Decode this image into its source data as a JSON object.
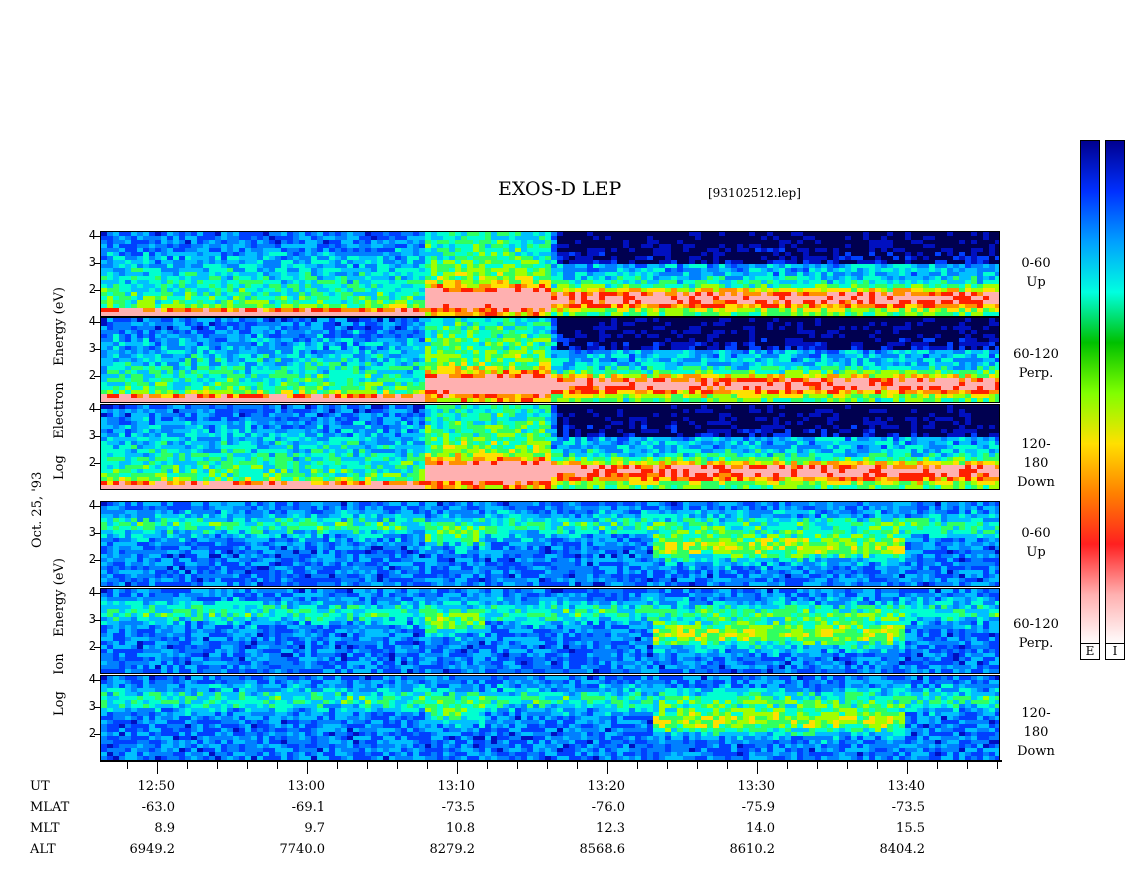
{
  "header": {
    "title": "EXOS-D LEP",
    "file": "[93102512.lep]"
  },
  "left_labels": {
    "electron": [
      "Log",
      "Electron",
      "Energy",
      "(eV)"
    ],
    "date": "Oct. 25, '93",
    "ion": [
      "Log",
      "Ion",
      "Energy",
      "(eV)"
    ]
  },
  "pitch_labels": [
    [
      "0-60",
      "Up"
    ],
    [
      "60-120",
      "Perp."
    ],
    [
      "120-180",
      "Down"
    ],
    [
      "0-60",
      "Up"
    ],
    [
      "60-120",
      "Perp."
    ],
    [
      "120-180",
      "Down"
    ]
  ],
  "colorbar": {
    "labels": [
      "E",
      "I"
    ],
    "colors": [
      "#ffffff",
      "#ffb0b0",
      "#ff2020",
      "#ff8000",
      "#ffe000",
      "#80ff00",
      "#00c000",
      "#00ffe0",
      "#00a0ff",
      "#0030ff",
      "#000090"
    ]
  },
  "ephemeris": {
    "row_labels": [
      "UT",
      "MLAT",
      "MLT",
      "ALT"
    ],
    "columns": [
      {
        "UT": "12:50",
        "MLAT": "-63.0",
        "MLT": "8.9",
        "ALT": "6949.2"
      },
      {
        "UT": "13:00",
        "MLAT": "-69.1",
        "MLT": "9.7",
        "ALT": "7740.0"
      },
      {
        "UT": "13:10",
        "MLAT": "-73.5",
        "MLT": "10.8",
        "ALT": "8279.2"
      },
      {
        "UT": "13:20",
        "MLAT": "-76.0",
        "MLT": "12.3",
        "ALT": "8568.6"
      },
      {
        "UT": "13:30",
        "MLAT": "-75.9",
        "MLT": "14.0",
        "ALT": "8610.2"
      },
      {
        "UT": "13:40",
        "MLAT": "-73.5",
        "MLT": "15.5",
        "ALT": "8404.2"
      }
    ]
  },
  "chart_data": {
    "type": "heatmap",
    "title": "EXOS-D LEP",
    "x": [
      "12:50",
      "13:00",
      "13:10",
      "13:20",
      "13:30",
      "13:40"
    ],
    "y_ticks": [
      2,
      3,
      4
    ],
    "panels": [
      {
        "species": "Electron",
        "pitch": "0-60 Up"
      },
      {
        "species": "Electron",
        "pitch": "60-120 Perp."
      },
      {
        "species": "Electron",
        "pitch": "120-180 Down"
      },
      {
        "species": "Ion",
        "pitch": "0-60 Up"
      },
      {
        "species": "Ion",
        "pitch": "60-120 Perp."
      },
      {
        "species": "Ion",
        "pitch": "120-180 Down"
      }
    ]
  }
}
